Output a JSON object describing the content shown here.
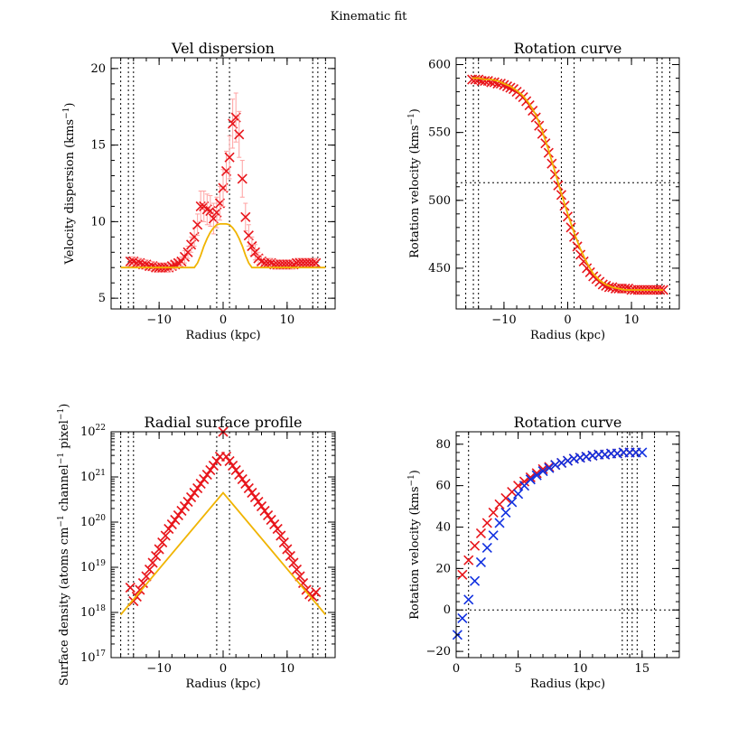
{
  "figure": {
    "title": "Kinematic fit"
  },
  "colors": {
    "data": "#e8151b",
    "model": "#f0b400",
    "second": "#1030e0",
    "errorbar": "#ffa0a0",
    "axis": "#000000"
  },
  "chart_data": [
    {
      "id": "vel-dispersion",
      "type": "scatter",
      "title": "Vel dispersion",
      "xlabel": "Radius (kpc)",
      "ylabel": "Velocity dispersion (kms",
      "ylabel_sup": "−1",
      "ylabel_end": ")",
      "xlim": [
        -17.5,
        17.5
      ],
      "ylim": [
        4.3,
        20.7
      ],
      "xticks": [
        -10,
        0,
        10
      ],
      "xtick_labels": [
        "−10",
        "0",
        "10"
      ],
      "yticks": [
        5,
        10,
        15,
        20
      ],
      "ytick_labels": [
        "5",
        "10",
        "15",
        "20"
      ],
      "vlines": [
        -16,
        -14.8,
        -14,
        -1,
        1,
        14,
        14.8,
        16
      ],
      "series": [
        {
          "name": "data",
          "marker": "x",
          "x": [
            -14.5,
            -14,
            -13.5,
            -13,
            -12.5,
            -12,
            -11.5,
            -11,
            -10.5,
            -10,
            -9.5,
            -9,
            -8.5,
            -8,
            -7.5,
            -7,
            -6.5,
            -6,
            -5.5,
            -5,
            -4.5,
            -4,
            -3.5,
            -3,
            -2.5,
            -2,
            -1.5,
            -1,
            -0.5,
            0,
            0.5,
            1,
            1.5,
            2,
            2.5,
            3,
            3.5,
            4,
            4.5,
            5,
            5.5,
            6,
            6.5,
            7,
            7.5,
            8,
            8.5,
            9,
            9.5,
            10,
            10.5,
            11,
            11.5,
            12,
            12.5,
            13,
            13.5,
            14,
            14.5
          ],
          "y": [
            7.4,
            7.4,
            7.3,
            7.3,
            7.2,
            7.2,
            7.1,
            7.1,
            7.0,
            7.0,
            7.0,
            7.0,
            7.0,
            7.1,
            7.2,
            7.3,
            7.4,
            7.7,
            8.0,
            8.5,
            9.0,
            9.8,
            11.0,
            11.0,
            10.8,
            10.7,
            10.2,
            10.6,
            11.2,
            12.2,
            13.3,
            14.2,
            16.4,
            16.8,
            15.7,
            12.8,
            10.3,
            9.1,
            8.4,
            8.0,
            7.6,
            7.4,
            7.3,
            7.3,
            7.3,
            7.2,
            7.2,
            7.2,
            7.2,
            7.2,
            7.2,
            7.2,
            7.3,
            7.3,
            7.3,
            7.3,
            7.3,
            7.3,
            7.3
          ],
          "err": [
            0.3,
            0.3,
            0.3,
            0.3,
            0.3,
            0.3,
            0.3,
            0.3,
            0.3,
            0.3,
            0.3,
            0.3,
            0.3,
            0.3,
            0.3,
            0.3,
            0.3,
            0.4,
            0.4,
            0.5,
            0.6,
            0.7,
            1.0,
            1.0,
            1.0,
            1.0,
            1.0,
            1.0,
            1.1,
            1.2,
            1.3,
            1.4,
            1.6,
            1.6,
            1.5,
            1.2,
            0.9,
            0.7,
            0.6,
            0.5,
            0.4,
            0.4,
            0.3,
            0.3,
            0.3,
            0.3,
            0.3,
            0.3,
            0.3,
            0.3,
            0.3,
            0.3,
            0.3,
            0.3,
            0.3,
            0.3,
            0.3,
            0.3,
            0.3
          ]
        },
        {
          "name": "model",
          "marker": "line",
          "x": [
            -16,
            -4.5,
            -4,
            -3.5,
            -3,
            -2.5,
            -2,
            -1.5,
            -1,
            -0.5,
            0,
            0.5,
            1,
            1.5,
            2,
            2.5,
            3,
            3.5,
            4,
            4.5,
            16
          ],
          "y": [
            7.0,
            7.0,
            7.3,
            7.8,
            8.4,
            8.9,
            9.3,
            9.6,
            9.8,
            9.85,
            9.85,
            9.85,
            9.8,
            9.6,
            9.3,
            8.9,
            8.4,
            7.8,
            7.3,
            7.0,
            7.0
          ]
        }
      ]
    },
    {
      "id": "rotation-curve-1",
      "type": "scatter",
      "title": "Rotation curve",
      "xlabel": "Radius (kpc)",
      "ylabel": "Rotation velocity (kms",
      "ylabel_sup": "−1",
      "ylabel_end": ")",
      "xlim": [
        -17.5,
        17.5
      ],
      "ylim": [
        420,
        605
      ],
      "xticks": [
        -10,
        0,
        10
      ],
      "xtick_labels": [
        "−10",
        "0",
        "10"
      ],
      "yticks": [
        450,
        500,
        550,
        600
      ],
      "ytick_labels": [
        "450",
        "500",
        "550",
        "600"
      ],
      "vlines": [
        -16,
        -14.8,
        -14,
        -1,
        1,
        14,
        14.8,
        16
      ],
      "hlines": [
        513
      ],
      "series": [
        {
          "name": "data",
          "marker": "x",
          "x": [
            -15,
            -14.5,
            -14,
            -13.5,
            -13,
            -12.5,
            -12,
            -11.5,
            -11,
            -10.5,
            -10,
            -9.5,
            -9,
            -8.5,
            -8,
            -7.5,
            -7,
            -6.5,
            -6,
            -5.5,
            -5,
            -4.5,
            -4,
            -3.5,
            -3,
            -2.5,
            -2,
            -1.5,
            -1,
            -0.5,
            0,
            0.5,
            1,
            1.5,
            2,
            2.5,
            3,
            3.5,
            4,
            4.5,
            5,
            5.5,
            6,
            6.5,
            7,
            7.5,
            8,
            8.5,
            9,
            9.5,
            10,
            10.5,
            11,
            11.5,
            12,
            12.5,
            13,
            13.5,
            14,
            14.5,
            15
          ],
          "y": [
            589,
            589,
            589,
            588,
            588,
            588,
            587,
            587,
            586,
            586,
            585,
            584,
            583,
            582,
            580,
            578,
            576,
            573,
            570,
            566,
            561,
            555,
            549,
            542,
            535,
            527,
            519,
            511,
            504,
            496,
            488,
            480,
            473,
            466,
            460,
            455,
            450,
            447,
            444,
            442,
            440,
            438,
            437,
            436,
            436,
            435,
            435,
            435,
            435,
            435,
            434,
            434,
            434,
            434,
            434,
            434,
            434,
            434,
            434,
            434,
            434
          ]
        },
        {
          "name": "model",
          "marker": "line",
          "x": [
            -15,
            -14,
            -13,
            -12,
            -11,
            -10,
            -9,
            -8,
            -7,
            -6,
            -5,
            -4,
            -3,
            -2,
            -1,
            0,
            1,
            2,
            3,
            4,
            5,
            6,
            7,
            8,
            9,
            10,
            11,
            12,
            13,
            14,
            15
          ],
          "y": [
            590,
            590,
            589,
            589,
            588,
            586,
            584,
            581,
            577,
            571,
            563,
            551,
            537,
            521,
            505,
            490,
            476,
            464,
            454,
            446,
            441,
            438,
            436,
            435,
            434,
            434,
            434,
            434,
            434,
            434,
            434
          ]
        }
      ]
    },
    {
      "id": "radial-surface-profile",
      "type": "scatter",
      "title": "Radial surface profile",
      "xlabel": "Radius (kpc)",
      "ylabel": "Surface density (atoms cm",
      "ylabel_sup": "−1",
      "ylabel_mid": " channel",
      "ylabel_sup2": "−1",
      "ylabel_end2": " pixel",
      "ylabel_sup3": "−1",
      "ylabel_end": ")",
      "yscale": "log",
      "xlim": [
        -17.5,
        17.5
      ],
      "ylim": [
        17,
        22
      ],
      "xticks": [
        -10,
        0,
        10
      ],
      "xtick_labels": [
        "−10",
        "0",
        "10"
      ],
      "yticks": [
        17,
        18,
        19,
        20,
        21,
        22
      ],
      "ytick_labels": [
        "17",
        "18",
        "19",
        "20",
        "21",
        "22"
      ],
      "ytick_base": "10",
      "vlines": [
        -16,
        -14.8,
        -14,
        -1,
        1,
        14,
        14.8,
        16
      ],
      "series": [
        {
          "name": "data",
          "marker": "x",
          "x": [
            -14.5,
            -14,
            -13.5,
            -13,
            -12.5,
            -12,
            -11.5,
            -11,
            -10.5,
            -10,
            -9.5,
            -9,
            -8.5,
            -8,
            -7.5,
            -7,
            -6.5,
            -6,
            -5.5,
            -5,
            -4.5,
            -4,
            -3.5,
            -3,
            -2.5,
            -2,
            -1.5,
            -1,
            -0.5,
            0,
            0.5,
            1,
            1.5,
            2,
            2.5,
            3,
            3.5,
            4,
            4.5,
            5,
            5.5,
            6,
            6.5,
            7,
            7.5,
            8,
            8.5,
            9,
            9.5,
            10,
            10.5,
            11,
            11.5,
            12,
            12.5,
            13,
            13.5,
            14,
            14.5
          ],
          "y": [
            18.55,
            18.25,
            18.35,
            18.5,
            18.65,
            18.8,
            18.95,
            19.1,
            19.25,
            19.4,
            19.55,
            19.7,
            19.85,
            19.95,
            20.05,
            20.15,
            20.25,
            20.35,
            20.45,
            20.55,
            20.65,
            20.75,
            20.85,
            20.95,
            21.05,
            21.15,
            21.25,
            21.35,
            21.45,
            22.0,
            21.45,
            21.35,
            21.25,
            21.15,
            21.05,
            20.95,
            20.85,
            20.75,
            20.65,
            20.55,
            20.45,
            20.35,
            20.25,
            20.15,
            20.05,
            19.95,
            19.85,
            19.7,
            19.55,
            19.4,
            19.25,
            19.1,
            18.95,
            18.8,
            18.65,
            18.5,
            18.4,
            18.35,
            18.45
          ]
        },
        {
          "name": "model",
          "marker": "line",
          "x": [
            -16,
            0,
            16
          ],
          "y": [
            17.95,
            20.65,
            17.95
          ]
        }
      ]
    },
    {
      "id": "rotation-curve-2",
      "type": "scatter",
      "title": "Rotation curve",
      "xlabel": "Radius (kpc)",
      "ylabel": "Rotation velocity (kms",
      "ylabel_sup": "−1",
      "ylabel_end": ")",
      "xlim": [
        0,
        18
      ],
      "ylim": [
        -23,
        86
      ],
      "xticks": [
        0,
        5,
        10,
        15
      ],
      "xtick_labels": [
        "0",
        "5",
        "10",
        "15"
      ],
      "yticks": [
        -20,
        0,
        20,
        40,
        60,
        80
      ],
      "ytick_labels": [
        "−20",
        "0",
        "20",
        "40",
        "60",
        "80"
      ],
      "vlines": [
        1,
        13.4,
        13.8,
        14.2,
        14.6,
        16
      ],
      "hlines": [
        0
      ],
      "series": [
        {
          "name": "data-red",
          "marker": "x",
          "x": [
            0.5,
            1,
            1.5,
            2,
            2.5,
            3,
            3.5,
            4,
            4.5,
            5,
            5.5,
            6,
            6.5,
            7,
            7.5,
            8,
            8.5,
            9,
            9.5,
            10,
            10.5,
            11,
            11.5,
            12,
            12.5,
            13,
            13.5,
            14,
            14.5
          ],
          "y": [
            17,
            24,
            31,
            37,
            42,
            47,
            51,
            54,
            57,
            60,
            62,
            64,
            66,
            68,
            69,
            70,
            71,
            72,
            73,
            73.5,
            74,
            74.5,
            75,
            75,
            75.5,
            75.5,
            76,
            76,
            76
          ]
        },
        {
          "name": "data-blue",
          "marker": "x",
          "color": "second",
          "x": [
            0.1,
            0.5,
            1,
            1.5,
            2,
            2.5,
            3,
            3.5,
            4,
            4.5,
            5,
            5.5,
            6,
            6.5,
            7,
            7.5,
            8,
            8.5,
            9,
            9.5,
            10,
            10.5,
            11,
            11.5,
            12,
            12.5,
            13,
            13.5,
            14,
            14.5,
            15
          ],
          "y": [
            -12,
            -4,
            5,
            14,
            23,
            30,
            36,
            42,
            47,
            52,
            56,
            60,
            63,
            65,
            67,
            68.5,
            70,
            71,
            72,
            73,
            73.5,
            74,
            74.5,
            75,
            75,
            75.5,
            75.5,
            76,
            76,
            76,
            76
          ]
        }
      ]
    }
  ]
}
